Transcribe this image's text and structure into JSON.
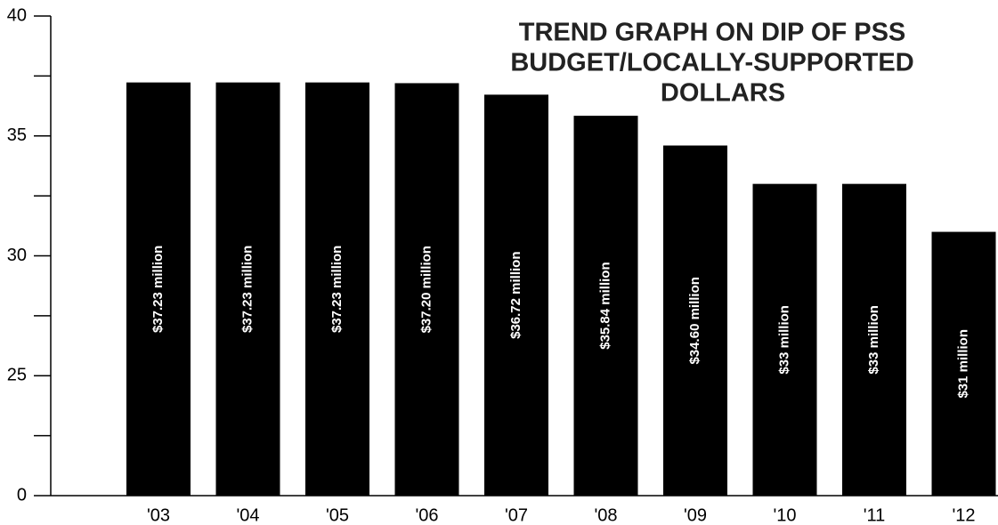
{
  "chart_data": {
    "type": "bar",
    "title": [
      "TREND GRAPH ON DIP OF PSS",
      "BUDGET/LOCALLY-SUPPORTED",
      "DOLLARS"
    ],
    "categories": [
      "'03",
      "'04",
      "'05",
      "'06",
      "'07",
      "'08",
      "'09",
      "'10",
      "'11",
      "'12"
    ],
    "values": [
      37.23,
      37.23,
      37.23,
      37.2,
      36.72,
      35.84,
      34.6,
      33,
      33,
      31
    ],
    "value_labels": [
      "$37.23 million",
      "$37.23 million",
      "$37.23 million",
      "$37.20 million",
      "$36.72 million",
      "$35.84 million",
      "$34.60 million",
      "$33 million",
      "$33 million",
      "$31 million"
    ],
    "color": "#000000",
    "ylim": [
      0,
      40
    ],
    "axis_break": [
      0,
      20
    ],
    "yticks": [
      0,
      25,
      30,
      35,
      40
    ],
    "yminorticks": [
      22.5,
      27.5,
      32.5,
      37.5
    ],
    "grid": false
  }
}
